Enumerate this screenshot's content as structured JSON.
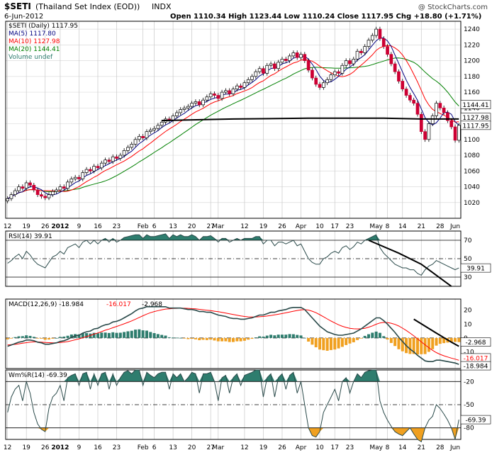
{
  "header": {
    "symbol": "$SETI",
    "name": "(Thailand Set Index (EOD))",
    "exchange": "INDX",
    "date": "6-Jun-2012",
    "ohlc_text": "Open 1110.34  High 1123.44  Low 1110.24  Close 1117.95  Chg +18.80 (+1.71%)",
    "watermark": "@ StockCharts.com"
  },
  "colors": {
    "up_candle": "#ffffff",
    "down_candle": "#cc0033",
    "ma5": "#000080",
    "ma10": "#ff0000",
    "ma20": "#008000",
    "area_fill": "#2e7d6e",
    "hist_fill": "#f0a020",
    "frame": "#000000"
  },
  "price_legend": [
    {
      "text": "$SETI (Daily) 1117.95",
      "color": "#000000"
    },
    {
      "text": "MA(5) 1117.80",
      "color": "#000080"
    },
    {
      "text": "MA(10) 1127.98",
      "color": "#ff0000"
    },
    {
      "text": "MA(20) 1144.41",
      "color": "#008000"
    },
    {
      "text": "Volume undef",
      "color": "#2e7d6e"
    }
  ],
  "price_tags": [
    {
      "text": "1144.41",
      "value": 1144.41
    },
    {
      "text": "1127.98",
      "value": 1127.98
    },
    {
      "text": "1117.95",
      "value": 1117.95
    }
  ],
  "x_axis_labels": [
    {
      "label": "12",
      "day": 0
    },
    {
      "label": "19",
      "day": 5
    },
    {
      "label": "26",
      "day": 10
    },
    {
      "label": "2012",
      "day": 14
    },
    {
      "label": "9",
      "day": 19
    },
    {
      "label": "16",
      "day": 24
    },
    {
      "label": "23",
      "day": 29
    },
    {
      "label": "Feb",
      "day": 36
    },
    {
      "label": "6",
      "day": 39
    },
    {
      "label": "13",
      "day": 44
    },
    {
      "label": "20",
      "day": 49
    },
    {
      "label": "27",
      "day": 54
    },
    {
      "label": "Mar",
      "day": 56
    },
    {
      "label": "12",
      "day": 63
    },
    {
      "label": "19",
      "day": 68
    },
    {
      "label": "26",
      "day": 73
    },
    {
      "label": "Apr",
      "day": 78
    },
    {
      "label": "10",
      "day": 83
    },
    {
      "label": "17",
      "day": 87
    },
    {
      "label": "23",
      "day": 91
    },
    {
      "label": "May",
      "day": 98
    },
    {
      "label": "8",
      "day": 101
    },
    {
      "label": "14",
      "day": 105
    },
    {
      "label": "21",
      "day": 110
    },
    {
      "label": "28",
      "day": 115
    },
    {
      "label": "Jun",
      "day": 119
    }
  ],
  "chart_data": [
    {
      "type": "candlestick",
      "title": "$SETI (Daily) 1117.95",
      "ylim": [
        1000,
        1250
      ],
      "y_ticks": [
        1020,
        1040,
        1060,
        1080,
        1100,
        1120,
        1140,
        1160,
        1180,
        1200,
        1220,
        1240
      ],
      "close": [
        1025,
        1030,
        1035,
        1040,
        1038,
        1045,
        1042,
        1036,
        1030,
        1028,
        1026,
        1030,
        1034,
        1036,
        1040,
        1038,
        1046,
        1050,
        1052,
        1050,
        1058,
        1062,
        1060,
        1066,
        1064,
        1070,
        1074,
        1072,
        1078,
        1076,
        1080,
        1086,
        1090,
        1094,
        1100,
        1104,
        1102,
        1110,
        1112,
        1114,
        1118,
        1122,
        1126,
        1124,
        1130,
        1134,
        1138,
        1140,
        1142,
        1146,
        1148,
        1144,
        1150,
        1154,
        1158,
        1156,
        1152,
        1160,
        1162,
        1158,
        1164,
        1168,
        1166,
        1172,
        1176,
        1180,
        1186,
        1190,
        1184,
        1194,
        1196,
        1190,
        1198,
        1202,
        1200,
        1206,
        1210,
        1204,
        1208,
        1200,
        1188,
        1178,
        1170,
        1166,
        1172,
        1176,
        1182,
        1186,
        1184,
        1194,
        1200,
        1196,
        1202,
        1212,
        1210,
        1218,
        1226,
        1232,
        1240,
        1228,
        1218,
        1208,
        1196,
        1186,
        1174,
        1164,
        1156,
        1150,
        1146,
        1132,
        1110,
        1100,
        1120,
        1130,
        1146,
        1140,
        1134,
        1124,
        1116,
        1099,
        1118
      ],
      "series": [
        {
          "name": "MA(5)",
          "last": 1117.8,
          "color": "#000080"
        },
        {
          "name": "MA(10)",
          "last": 1127.98,
          "color": "#ff0000"
        },
        {
          "name": "MA(20)",
          "last": 1144.41,
          "color": "#008000"
        }
      ],
      "annotation_curve": [
        [
          41,
          1124
        ],
        [
          60,
          1126
        ],
        [
          80,
          1127
        ],
        [
          100,
          1127
        ],
        [
          110,
          1126
        ],
        [
          120,
          1126
        ]
      ]
    },
    {
      "type": "line",
      "title": "RSI(14) 39.91",
      "ylim": [
        20,
        80
      ],
      "y_ticks": [
        30,
        50,
        70,
        90
      ],
      "reference_lines": [
        30,
        50,
        70
      ],
      "last_label": "39.91",
      "values": [
        45,
        48,
        52,
        55,
        50,
        58,
        54,
        48,
        44,
        42,
        40,
        46,
        52,
        54,
        58,
        55,
        62,
        64,
        66,
        62,
        68,
        70,
        66,
        70,
        66,
        70,
        72,
        68,
        72,
        68,
        70,
        73,
        74,
        75,
        76,
        76,
        72,
        76,
        74,
        74,
        75,
        76,
        77,
        72,
        76,
        74,
        76,
        74,
        74,
        76,
        74,
        70,
        74,
        74,
        75,
        72,
        68,
        72,
        72,
        68,
        70,
        72,
        70,
        72,
        72,
        72,
        74,
        74,
        66,
        70,
        70,
        64,
        68,
        68,
        66,
        68,
        70,
        64,
        66,
        58,
        50,
        46,
        44,
        44,
        50,
        52,
        56,
        58,
        56,
        62,
        64,
        60,
        63,
        68,
        66,
        70,
        72,
        74,
        76,
        62,
        56,
        52,
        48,
        44,
        42,
        40,
        40,
        38,
        38,
        34,
        32,
        38,
        42,
        44,
        48,
        46,
        44,
        42,
        40,
        38,
        39.91
      ],
      "annotation_curve": [
        [
          96,
          70
        ],
        [
          104,
          56
        ],
        [
          110,
          44
        ],
        [
          114,
          32
        ],
        [
          118,
          20
        ]
      ]
    },
    {
      "type": "line",
      "title": "MACD(12,26,9)",
      "legend": [
        {
          "text": "MACD(12,26,9) -18.984",
          "color": "#000000"
        },
        {
          "text": "-16.017",
          "color": "#ff0000"
        },
        {
          "text": "-2.968",
          "color": "#000000"
        }
      ],
      "ylim": [
        -22,
        28
      ],
      "y_ticks": [
        -20,
        -10,
        0,
        10,
        20
      ],
      "dashed_zero": true,
      "last_labels": [
        "-2.968",
        "-16.017",
        "-18.984"
      ],
      "series": [
        {
          "name": "MACD",
          "color": "#2a4a4a",
          "values": [
            -6,
            -5,
            -4,
            -3,
            -2.5,
            -1.5,
            -1.5,
            -2,
            -3,
            -3.5,
            -4.5,
            -4.5,
            -4,
            -3.5,
            -2.5,
            -2,
            -1,
            0.5,
            1.5,
            2,
            3.5,
            4.5,
            5,
            6.5,
            7,
            8.5,
            9.5,
            10,
            11.5,
            12,
            13,
            14.5,
            16,
            17.5,
            19.5,
            21,
            21.5,
            22.5,
            22.5,
            22.5,
            22.5,
            22.5,
            22.5,
            21.5,
            21.5,
            21.5,
            21.5,
            21,
            20.5,
            20.5,
            20,
            19,
            19,
            18.5,
            18.5,
            17.5,
            16.5,
            16,
            15.5,
            14.5,
            14,
            14,
            13.5,
            13.5,
            14,
            14.5,
            15.5,
            16.5,
            16.5,
            17.5,
            18.5,
            18.5,
            19.5,
            20,
            20.5,
            21.5,
            22,
            22,
            22,
            20.5,
            17.5,
            14.5,
            11.5,
            8.5,
            6.5,
            4.5,
            3.5,
            2.5,
            2,
            2,
            2.5,
            3,
            3.5,
            5,
            6.5,
            8.5,
            10.5,
            12.5,
            14.5,
            14.5,
            12.5,
            10,
            7,
            4,
            0.5,
            -2.5,
            -5.5,
            -8,
            -10,
            -12.5,
            -14.5,
            -16.5,
            -17,
            -17,
            -16,
            -16,
            -16.5,
            -17,
            -17.5,
            -18,
            -18.984
          ]
        },
        {
          "name": "Signal",
          "color": "#ff0000",
          "values": [
            -5,
            -4.8,
            -4.6,
            -4.2,
            -3.8,
            -3.4,
            -3,
            -2.8,
            -2.8,
            -3,
            -3.2,
            -3.4,
            -3.5,
            -3.5,
            -3.3,
            -3,
            -2.6,
            -2,
            -1.3,
            -0.6,
            0.2,
            1,
            1.8,
            2.8,
            3.6,
            4.6,
            5.6,
            6.4,
            7.4,
            8.3,
            9.2,
            10.2,
            11.2,
            12.3,
            13.5,
            14.8,
            16,
            17.2,
            18.2,
            19,
            19.7,
            20.3,
            20.8,
            21,
            21.2,
            21.3,
            21.4,
            21.4,
            21.3,
            21.1,
            21,
            20.6,
            20.3,
            20,
            19.7,
            19.3,
            18.9,
            18.4,
            17.9,
            17.4,
            16.9,
            16.4,
            15.9,
            15.5,
            15.2,
            15.1,
            15.1,
            15.3,
            15.5,
            15.8,
            16.2,
            16.6,
            17.1,
            17.6,
            18.1,
            18.7,
            19.3,
            19.8,
            20.2,
            20.4,
            20.1,
            19.3,
            18.2,
            16.8,
            15.3,
            13.7,
            12.2,
            10.8,
            9.5,
            8.4,
            7.6,
            7,
            6.6,
            6.5,
            6.6,
            7,
            7.8,
            8.7,
            9.9,
            10.8,
            11.2,
            11.1,
            10.6,
            9.8,
            8.6,
            7.1,
            5.4,
            3.5,
            1.5,
            -0.6,
            -2.8,
            -4.9,
            -7,
            -8.9,
            -10.5,
            -11.8,
            -12.8,
            -13.7,
            -14.5,
            -15.2,
            -16.017
          ]
        },
        {
          "name": "Histogram",
          "color": "#f0a020",
          "type": "bar",
          "note": "MACD minus Signal",
          "last": -2.968
        }
      ],
      "annotation_curve": [
        [
          108,
          13.5
        ],
        [
          114,
          3.5
        ],
        [
          118,
          -3
        ],
        [
          120,
          -6
        ]
      ]
    },
    {
      "type": "line",
      "title": "Wm%R(14) -69.39",
      "ylim": [
        -95,
        -5
      ],
      "y_ticks": [
        -20,
        -50,
        -80
      ],
      "reference_lines": [
        -20,
        -50,
        -80
      ],
      "last_label": "-69.39",
      "values": [
        -60,
        -40,
        -30,
        -25,
        -45,
        -20,
        -35,
        -60,
        -75,
        -82,
        -85,
        -55,
        -40,
        -35,
        -25,
        -45,
        -15,
        -12,
        -10,
        -25,
        -10,
        -8,
        -30,
        -10,
        -25,
        -10,
        -8,
        -30,
        -10,
        -25,
        -15,
        -8,
        -6,
        -10,
        -5,
        -5,
        -25,
        -8,
        -12,
        -15,
        -10,
        -8,
        -8,
        -30,
        -10,
        -15,
        -10,
        -20,
        -15,
        -8,
        -10,
        -35,
        -10,
        -10,
        -8,
        -20,
        -45,
        -15,
        -12,
        -35,
        -15,
        -10,
        -25,
        -12,
        -10,
        -8,
        -5,
        -5,
        -40,
        -15,
        -10,
        -40,
        -15,
        -10,
        -30,
        -12,
        -8,
        -35,
        -20,
        -50,
        -80,
        -90,
        -92,
        -85,
        -60,
        -50,
        -40,
        -30,
        -45,
        -20,
        -15,
        -35,
        -20,
        -10,
        -15,
        -8,
        -6,
        -5,
        -5,
        -45,
        -60,
        -70,
        -78,
        -85,
        -88,
        -90,
        -85,
        -80,
        -88,
        -95,
        -98,
        -80,
        -70,
        -65,
        -50,
        -55,
        -62,
        -70,
        -80,
        -95,
        -69.39
      ]
    }
  ]
}
